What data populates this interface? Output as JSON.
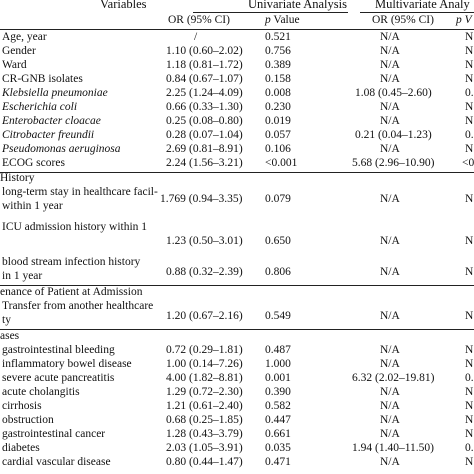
{
  "header": {
    "variables": "Variables",
    "univariate": "Univariate Analysis",
    "multivariate": "Multivariate Analy",
    "or_ci_1": "OR (95% CI)",
    "p_1_italic": "p",
    "p_1_rest": " Value",
    "or_ci_2": "OR (95% CI)",
    "p_2": "p V"
  },
  "rows": [
    {
      "label": "Age, year",
      "or": "/",
      "p": "0.521",
      "mor": "N/A",
      "mp": "N"
    },
    {
      "label": "Gender",
      "or": "1.10 (0.60–2.02)",
      "p": "0.756",
      "mor": "N/A",
      "mp": "N"
    },
    {
      "label": "Ward",
      "or": "1.18 (0.81–1.72)",
      "p": "0.389",
      "mor": "N/A",
      "mp": "N"
    },
    {
      "label": "CR-GNB isolates",
      "or": "0.84 (0.67–1.07)",
      "p": "0.158",
      "mor": "N/A",
      "mp": "N"
    },
    {
      "label": "Klebsiella pneumoniae",
      "or": "2.25 (1.24–4.09)",
      "p": "0.008",
      "mor": "1.08 (0.45–2.60)",
      "mp": "0."
    },
    {
      "label": "Escherichia coli",
      "or": "0.66 (0.33–1.30)",
      "p": "0.230",
      "mor": "N/A",
      "mp": "N"
    },
    {
      "label": "Enterobacter cloacae",
      "or": "0.25 (0.08–0.80)",
      "p": "0.019",
      "mor": "N/A",
      "mp": "N"
    },
    {
      "label": "Citrobacter freundii",
      "or": "0.28 (0.07–1.04)",
      "p": "0.057",
      "mor": "0.21 (0.04–1.23)",
      "mp": "0."
    },
    {
      "label": "Pseudomonas aeruginosa",
      "or": "2.69 (0.81–8.91)",
      "p": "0.106",
      "mor": "N/A",
      "mp": "N"
    },
    {
      "label": "ECOG scores",
      "or": "2.24 (1.56–3.21)",
      "p": "<0.001",
      "mor": "5.68 (2.96–10.90)",
      "mp": "<0"
    }
  ],
  "history_title": "History",
  "history": [
    {
      "line1": "long-term stay in healthcare facil-",
      "line2": "within 1 year",
      "or": "1.769 (0.94–3.35)",
      "p": "0.079",
      "mor": "N/A",
      "mp": "N"
    },
    {
      "line1": "ICU admission history within 1",
      "line2": "",
      "or": "1.23 (0.50–3.01)",
      "p": "0.650",
      "mor": "N/A",
      "mp": "N"
    },
    {
      "line1": "blood stream infection history",
      "line2": "in 1 year",
      "or": "0.88 (0.32–2.39)",
      "p": "0.806",
      "mor": "N/A",
      "mp": "N"
    }
  ],
  "provenance_title": "enance of Patient at Admission",
  "provenance": {
    "line1": "Transfer from another healthcare",
    "line2": "ty",
    "or": "1.20 (0.67–2.16)",
    "p": "0.549",
    "mor": "N/A",
    "mp": "N"
  },
  "diseases_title": "ases",
  "diseases": [
    {
      "label": "gastrointestinal bleeding",
      "or": "0.72 (0.29–1.81)",
      "p": "0.487",
      "mor": "N/A",
      "mp": "N"
    },
    {
      "label": "inflammatory bowel disease",
      "or": "1.00 (0.14–7.26)",
      "p": "1.000",
      "mor": "N/A",
      "mp": "N"
    },
    {
      "label": "severe acute pancreatitis",
      "or": "4.00 (1.82–8.81)",
      "p": "0.001",
      "mor": "6.32 (2.02–19.81)",
      "mp": "0."
    },
    {
      "label": "acute cholangitis",
      "or": "1.29 (0.72–2.30)",
      "p": "0.390",
      "mor": "N/A",
      "mp": "N"
    },
    {
      "label": "cirrhosis",
      "or": "1.21 (0.61–2.40)",
      "p": "0.582",
      "mor": "N/A",
      "mp": "N"
    },
    {
      "label": "obstruction",
      "or": "0.68 (0.25–1.85)",
      "p": "0.447",
      "mor": "N/A",
      "mp": "N"
    },
    {
      "label": "gastrointestinal cancer",
      "or": "1.28 (0.43–3.79)",
      "p": "0.661",
      "mor": "N/A",
      "mp": "N"
    },
    {
      "label": "diabetes",
      "or": "2.03 (1.05–3.91)",
      "p": "0.035",
      "mor": "1.94 (1.40–11.50)",
      "mp": "0."
    },
    {
      "label": "cardial vascular disease",
      "or": "0.80 (0.44–1.47)",
      "p": "0.471",
      "mor": "N/A",
      "mp": "N"
    }
  ]
}
